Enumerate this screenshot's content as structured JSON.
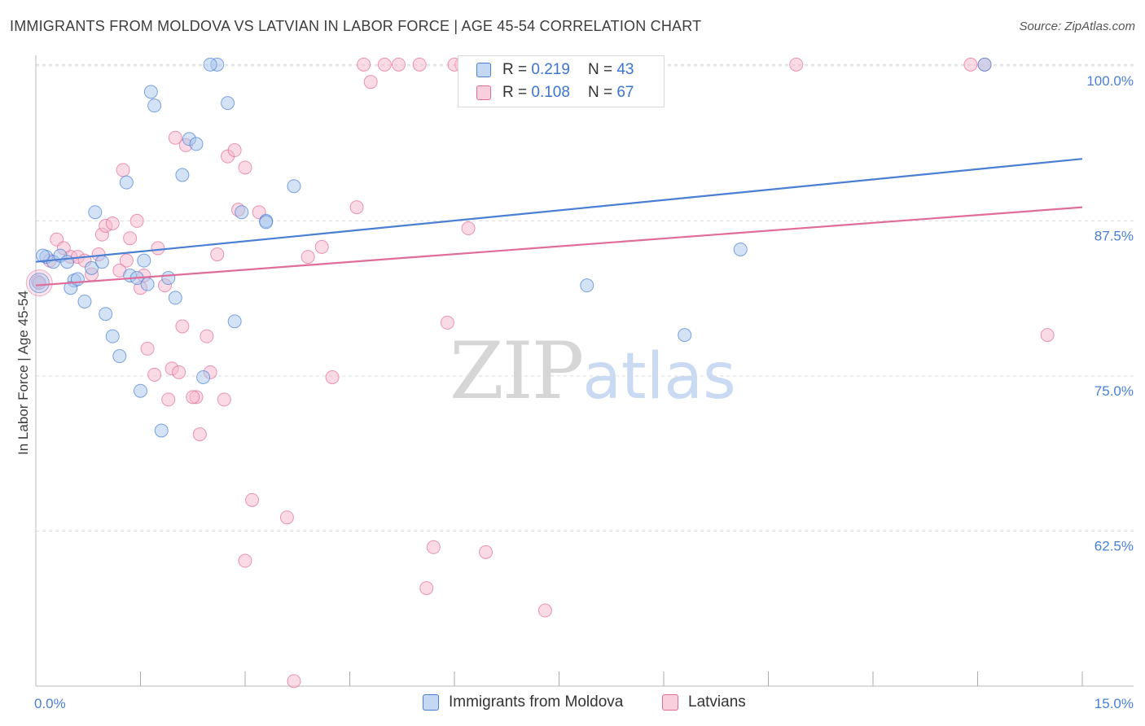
{
  "title": "IMMIGRANTS FROM MOLDOVA VS LATVIAN IN LABOR FORCE | AGE 45-54 CORRELATION CHART",
  "source": "Source: ZipAtlas.com",
  "watermark": {
    "part1": "ZIP",
    "part2": "atlas"
  },
  "colors": {
    "blue": "#4a7fd4",
    "blue_fill": "#aac6ee",
    "pink": "#e06c99",
    "pink_fill": "#f5b8cc",
    "grid": "#dcdcdc"
  },
  "legend": {
    "rows": [
      {
        "r_label": "R =",
        "r_value": "0.219",
        "n_label": "N =",
        "n_value": "43"
      },
      {
        "r_label": "R =",
        "r_value": "0.108",
        "n_label": "N =",
        "n_value": "67"
      }
    ]
  },
  "chart_data": {
    "type": "scatter",
    "title": "IMMIGRANTS FROM MOLDOVA VS LATVIAN IN LABOR FORCE | AGE 45-54 CORRELATION CHART",
    "xlabel": "",
    "ylabel": "In Labor Force | Age 45-54",
    "xlim": [
      0,
      15
    ],
    "ylim": [
      50,
      101.5
    ],
    "x_tick_labels": [
      "0.0%",
      "15.0%"
    ],
    "y_ticks": [
      100,
      87.5,
      75,
      62.5
    ],
    "y_tick_labels": [
      "100.0%",
      "87.5%",
      "75.0%",
      "62.5%"
    ],
    "legend_position": "top-center",
    "series": [
      {
        "name": "Immigrants from Moldova",
        "color": "#4a7fd4",
        "trend": {
          "x": [
            0,
            15
          ],
          "y": [
            84.2,
            92.5
          ]
        },
        "x": [
          0.05,
          0.15,
          0.25,
          0.35,
          0.45,
          0.55,
          0.5,
          0.6,
          0.7,
          0.8,
          0.95,
          0.85,
          1.0,
          1.1,
          1.2,
          1.3,
          1.5,
          1.55,
          1.65,
          1.7,
          1.8,
          2.0,
          2.1,
          2.2,
          2.3,
          2.4,
          2.6,
          2.5,
          2.75,
          2.85,
          2.95,
          3.3,
          3.7,
          3.3,
          1.35,
          1.45,
          1.6,
          1.9,
          7.9,
          9.3,
          10.1,
          13.6,
          0.1
        ],
        "y": [
          82.5,
          84.6,
          84.2,
          84.7,
          84.2,
          82.7,
          82.1,
          82.8,
          81.0,
          83.7,
          84.2,
          88.2,
          80.0,
          78.2,
          76.6,
          90.6,
          73.8,
          84.3,
          97.9,
          96.8,
          70.6,
          81.3,
          91.2,
          94.1,
          93.7,
          74.9,
          100.1,
          100.1,
          97.0,
          79.4,
          88.2,
          87.5,
          90.3,
          87.4,
          83.1,
          82.9,
          82.4,
          82.9,
          82.3,
          78.3,
          85.2,
          100.1,
          84.7
        ]
      },
      {
        "name": "Latvians",
        "color": "#e06c99",
        "trend": {
          "x": [
            0,
            15
          ],
          "y": [
            82.3,
            88.6
          ]
        },
        "x": [
          0.03,
          0.2,
          0.3,
          0.4,
          0.5,
          0.6,
          0.7,
          0.8,
          0.95,
          0.9,
          1.0,
          1.1,
          1.2,
          1.25,
          1.35,
          1.45,
          1.5,
          1.6,
          1.7,
          1.75,
          1.85,
          1.95,
          2.0,
          2.1,
          2.15,
          2.3,
          2.35,
          2.45,
          2.6,
          2.75,
          2.85,
          2.9,
          3.0,
          3.1,
          3.2,
          3.6,
          3.9,
          3.7,
          4.1,
          4.25,
          4.6,
          4.7,
          4.8,
          5.0,
          5.2,
          5.5,
          5.6,
          5.7,
          5.9,
          6.2,
          6.1,
          6.45,
          6.0,
          7.3,
          8.35,
          10.9,
          13.4,
          13.6,
          14.5,
          1.55,
          1.9,
          2.05,
          2.25,
          2.5,
          3.0,
          1.3,
          2.7
        ],
        "y": [
          82.6,
          84.3,
          86.0,
          85.3,
          84.6,
          84.6,
          84.3,
          83.2,
          86.4,
          84.8,
          87.1,
          87.3,
          83.5,
          91.6,
          86.1,
          87.5,
          82.1,
          77.2,
          75.1,
          85.3,
          82.3,
          75.6,
          94.2,
          79.0,
          93.6,
          73.3,
          70.3,
          78.2,
          84.8,
          92.7,
          93.2,
          88.4,
          91.8,
          65.0,
          88.2,
          63.6,
          84.6,
          50.4,
          85.4,
          74.9,
          88.6,
          100.1,
          98.7,
          100.1,
          100.1,
          100.1,
          57.9,
          61.2,
          79.3,
          86.9,
          100.1,
          60.8,
          100.1,
          56.1,
          100.1,
          100.1,
          100.1,
          100.1,
          78.3,
          83.1,
          73.1,
          75.3,
          73.3,
          75.3,
          60.1,
          84.3,
          73.1
        ]
      }
    ]
  }
}
